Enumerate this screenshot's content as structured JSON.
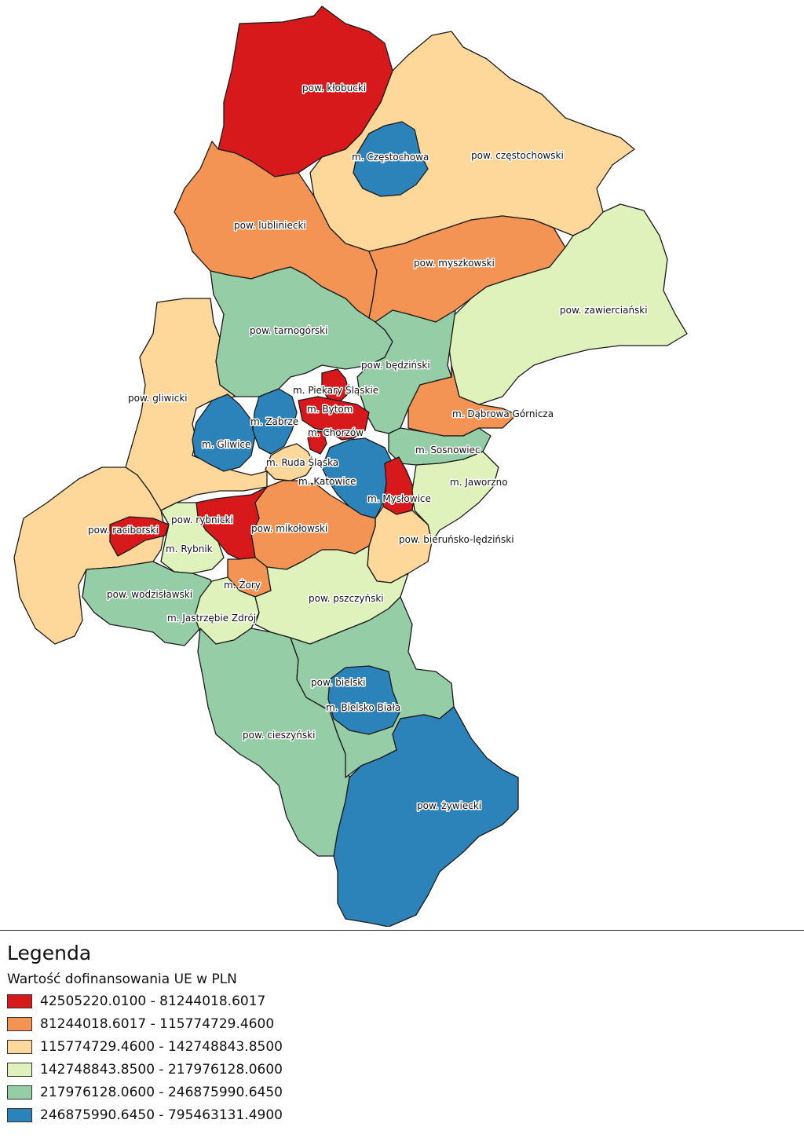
{
  "colors": {
    "c1": "#d7191c",
    "c2": "#f39455",
    "c3": "#fdd89a",
    "c4": "#e0f2bb",
    "c5": "#95cda6",
    "c6": "#2b83ba"
  },
  "regions": [
    {
      "label": "pow. kłobucki",
      "cls": "c1"
    },
    {
      "label": "m. Częstochowa",
      "cls": "c6"
    },
    {
      "label": "pow. częstochowski",
      "cls": "c3"
    },
    {
      "label": "pow. lubliniecki",
      "cls": "c2"
    },
    {
      "label": "pow. myszkowski",
      "cls": "c2"
    },
    {
      "label": "pow. zawierciański",
      "cls": "c4"
    },
    {
      "label": "pow. tarnogórski",
      "cls": "c5"
    },
    {
      "label": "pow. będziński",
      "cls": "c5"
    },
    {
      "label": "m. Piekary Śląskie",
      "cls": "c1"
    },
    {
      "label": "pow. gliwicki",
      "cls": "c3"
    },
    {
      "label": "m. Bytom",
      "cls": "c1"
    },
    {
      "label": "m. Zabrze",
      "cls": "c6"
    },
    {
      "label": "m. Chorzów",
      "cls": "c1"
    },
    {
      "label": "m. Dąbrowa Górnicza",
      "cls": "c2"
    },
    {
      "label": "m. Gliwice",
      "cls": "c6"
    },
    {
      "label": "m. Sosnowiec",
      "cls": "c5"
    },
    {
      "label": "m. Ruda Śląska",
      "cls": "c3"
    },
    {
      "label": "m. Katowice",
      "cls": "c6"
    },
    {
      "label": "m. Jaworzno",
      "cls": "c4"
    },
    {
      "label": "m. Mysłowice",
      "cls": "c1"
    },
    {
      "label": "pow. raciborski",
      "cls": "c3"
    },
    {
      "label": "pow. rybnicki",
      "cls": "c1"
    },
    {
      "label": "pow. mikołowski",
      "cls": "c2"
    },
    {
      "label": "m. Rybnik",
      "cls": "c4"
    },
    {
      "label": "pow. bieruńsko-lędziński",
      "cls": "c3"
    },
    {
      "label": "m. Żory",
      "cls": "c2"
    },
    {
      "label": "pow. wodzisławski",
      "cls": "c5"
    },
    {
      "label": "pow. pszczyński",
      "cls": "c4"
    },
    {
      "label": "m. Jastrzębie Zdrój",
      "cls": "c4"
    },
    {
      "label": "pow. bielski",
      "cls": "c5"
    },
    {
      "label": "m. Bielsko Biała",
      "cls": "c6"
    },
    {
      "label": "pow. cieszyński",
      "cls": "c5"
    },
    {
      "label": "pow. żywiecki",
      "cls": "c6"
    }
  ],
  "legend": {
    "title": "Legenda",
    "subtitle": "Wartość dofinansowania UE w PLN",
    "classes": [
      {
        "label": "42505220.0100 - 81244018.6017",
        "cls": "c1"
      },
      {
        "label": "81244018.6017 - 115774729.4600",
        "cls": "c2"
      },
      {
        "label": "115774729.4600 - 142748843.8500",
        "cls": "c3"
      },
      {
        "label": "142748843.8500 - 217976128.0600",
        "cls": "c4"
      },
      {
        "label": "217976128.0600 - 246875990.6450",
        "cls": "c5"
      },
      {
        "label": "246875990.6450 - 795463131.4900",
        "cls": "c6"
      }
    ]
  }
}
